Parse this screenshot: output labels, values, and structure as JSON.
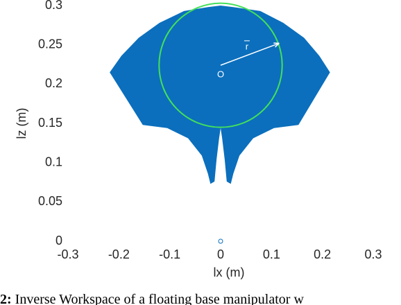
{
  "chart_data": {
    "type": "workspace",
    "xlabel": "lx (m)",
    "ylabel": "lz (m)",
    "xlim": [
      -0.3,
      0.3
    ],
    "ylim": [
      0,
      0.3
    ],
    "xticks": [
      -0.3,
      -0.2,
      -0.1,
      0,
      0.1,
      0.2,
      0.3
    ],
    "yticks": [
      0,
      0.05,
      0.1,
      0.15,
      0.2,
      0.25,
      0.3
    ],
    "region": {
      "color": "#0b6fbd",
      "x": [
        -0.218,
        -0.195,
        -0.161,
        -0.12,
        -0.072,
        -0.025,
        0,
        0.025,
        0.078,
        0.123,
        0.164,
        0.194,
        0.215,
        0.153,
        0.105,
        0.064,
        0.037,
        0.025,
        0.02,
        0.012,
        0.008,
        0.003,
        0,
        -0.003,
        -0.008,
        -0.012,
        -0.02,
        -0.025,
        -0.037,
        -0.064,
        -0.105,
        -0.153
      ],
      "y": [
        0.215,
        0.236,
        0.259,
        0.278,
        0.293,
        0.298,
        0.3,
        0.298,
        0.293,
        0.278,
        0.259,
        0.236,
        0.215,
        0.148,
        0.144,
        0.131,
        0.109,
        0.086,
        0.073,
        0.076,
        0.104,
        0.131,
        0.144,
        0.131,
        0.104,
        0.076,
        0.073,
        0.086,
        0.109,
        0.131,
        0.144,
        0.148
      ]
    },
    "circle": {
      "color": "#44e05a",
      "center": [
        0,
        0.224
      ],
      "radius_x": 0.121,
      "radius_y": 0.079,
      "center_label": "O"
    },
    "radius_arrow": {
      "color": "#ffffff",
      "label": "r",
      "end": [
        0.115,
        0.252
      ]
    },
    "marker": {
      "color": "#0b6fbd",
      "x": 0,
      "y": 0
    }
  },
  "caption": {
    "label": "2:",
    "text": "Inverse Workspace of a floating base manipulator w"
  }
}
